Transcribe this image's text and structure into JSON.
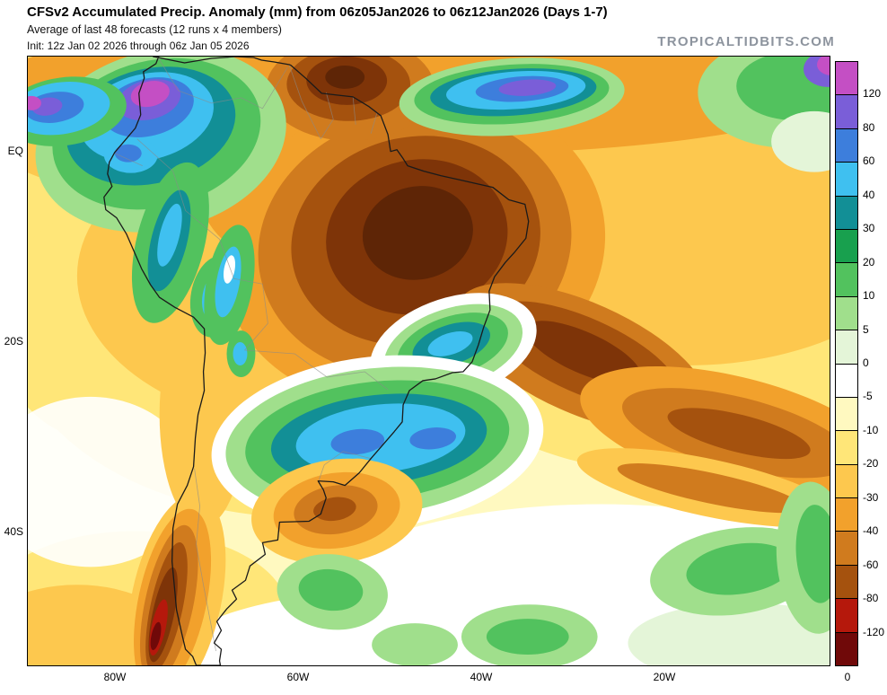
{
  "header": {
    "title": "CFSv2 Accumulated Precip. Anomaly (mm) from 06z05Jan2026 to 06z12Jan2026 (Days 1-7)",
    "subtitle": "Average of last 48 forecasts (12 runs x 4 members)",
    "init": "Init: 12z Jan 02 2026 through 06z Jan 05 2026",
    "watermark": "TROPICALTIDBITS.COM"
  },
  "map": {
    "region": "South America",
    "lat_labels": [
      "EQ",
      "20S",
      "40S"
    ],
    "lon_labels": [
      "80W",
      "60W",
      "40W",
      "20W",
      "0"
    ]
  },
  "colorbar": {
    "unit": "mm",
    "tick_labels": [
      "120",
      "80",
      "60",
      "40",
      "30",
      "20",
      "10",
      "5",
      "0",
      "-5",
      "-10",
      "-20",
      "-30",
      "-40",
      "-60",
      "-80",
      "-120"
    ],
    "segment_colors_top_to_bottom": [
      "#c44fc4",
      "#7a5ed8",
      "#3d7edc",
      "#3fc0f0",
      "#128f96",
      "#18a04e",
      "#52c25e",
      "#a0df8c",
      "#e4f5d8",
      "#ffffff",
      "#fff9c0",
      "#ffe678",
      "#fdc84e",
      "#f2a12c",
      "#d07b1e",
      "#a5520e",
      "#b5180c",
      "#700909"
    ]
  },
  "map_colors": {
    "dark_brown": "#7e3408",
    "darkest_brown": "#5e2506",
    "coastline": "#1a1a1a",
    "border": "#8a8a8a"
  }
}
